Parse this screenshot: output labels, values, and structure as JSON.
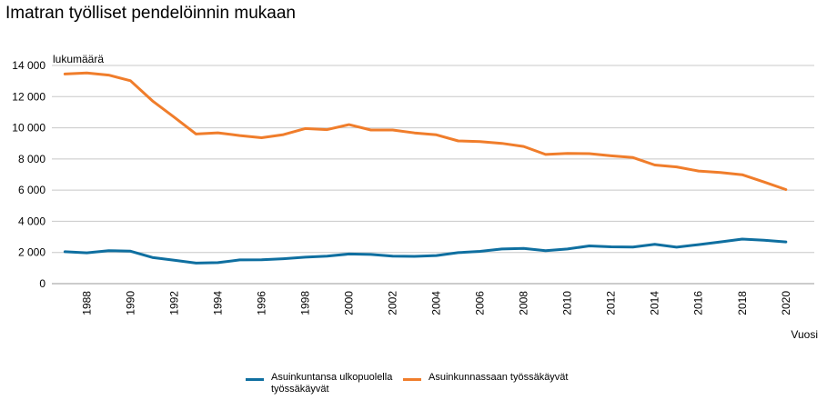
{
  "title": "Imatran työlliset pendelöinnin mukaan",
  "chart_data": {
    "type": "line",
    "ylabel": "lukumäärä",
    "xlabel": "Vuosi",
    "ylim": [
      0,
      14000
    ],
    "yticks": [
      0,
      2000,
      4000,
      6000,
      8000,
      10000,
      12000,
      14000
    ],
    "ytick_labels": [
      "0",
      "2 000",
      "4 000",
      "6 000",
      "8 000",
      "10 000",
      "12 000",
      "14 000"
    ],
    "xticks": [
      1988,
      1990,
      1992,
      1994,
      1996,
      1998,
      2000,
      2002,
      2004,
      2006,
      2008,
      2010,
      2012,
      2014,
      2016,
      2018,
      2020
    ],
    "grid": true,
    "legend_position": "bottom",
    "x": [
      1987,
      1988,
      1989,
      1990,
      1991,
      1992,
      1993,
      1994,
      1995,
      1996,
      1997,
      1998,
      1999,
      2000,
      2001,
      2002,
      2003,
      2004,
      2005,
      2006,
      2007,
      2008,
      2009,
      2010,
      2011,
      2012,
      2013,
      2014,
      2015,
      2016,
      2017,
      2018,
      2019,
      2020
    ],
    "series": [
      {
        "name": "Asuinkuntansa ulkopuolella työssäkäyvät",
        "color": "#0f6fa0",
        "values": [
          2050,
          1980,
          2120,
          2080,
          1680,
          1500,
          1320,
          1350,
          1520,
          1530,
          1600,
          1700,
          1760,
          1900,
          1870,
          1760,
          1750,
          1800,
          1990,
          2070,
          2220,
          2260,
          2110,
          2220,
          2420,
          2360,
          2350,
          2520,
          2340,
          2500,
          2680,
          2860,
          2780,
          2680
        ]
      },
      {
        "name": "Asuinkunnassaan työssäkäyvät",
        "color": "#f07d2b",
        "values": [
          13450,
          13520,
          13380,
          13020,
          11730,
          10680,
          9600,
          9680,
          9500,
          9360,
          9560,
          9950,
          9880,
          10200,
          9860,
          9860,
          9670,
          9550,
          9160,
          9110,
          9000,
          8800,
          8290,
          8360,
          8340,
          8200,
          8090,
          7610,
          7490,
          7230,
          7130,
          6990,
          6520,
          6040
        ]
      }
    ]
  }
}
